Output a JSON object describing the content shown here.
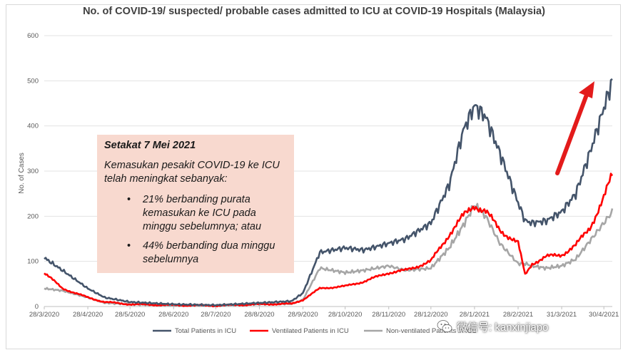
{
  "chart_data": {
    "type": "line",
    "title": "No. of COVID-19/ suspected/ probable cases admitted to ICU at COVID-19 Hospitals (Malaysia)",
    "xlabel": "",
    "ylabel": "No. of Cases",
    "ylim": [
      0,
      600
    ],
    "yticks": [
      0,
      100,
      200,
      300,
      400,
      500,
      600
    ],
    "xlim": [
      "2020-03-28",
      "2021-05-06"
    ],
    "xtick_labels": [
      "28/3/2020",
      "28/4/2020",
      "28/5/2020",
      "28/6/2020",
      "28/7/2020",
      "28/8/2020",
      "28/9/2020",
      "28/10/2020",
      "28/11/2020",
      "28/12/2020",
      "28/1/2021",
      "28/2/2021",
      "31/3/2021",
      "30/4/2021"
    ],
    "grid": "horizontal",
    "legend": "bottom",
    "x": [
      "2020-03-28",
      "2020-04-10",
      "2020-04-28",
      "2020-05-10",
      "2020-05-28",
      "2020-06-28",
      "2020-07-28",
      "2020-08-28",
      "2020-09-20",
      "2020-09-28",
      "2020-10-10",
      "2020-10-28",
      "2020-11-10",
      "2020-11-28",
      "2020-12-10",
      "2020-12-28",
      "2021-01-10",
      "2021-01-20",
      "2021-01-28",
      "2021-02-05",
      "2021-02-15",
      "2021-02-28",
      "2021-03-05",
      "2021-03-10",
      "2021-03-20",
      "2021-03-31",
      "2021-04-10",
      "2021-04-20",
      "2021-04-30",
      "2021-05-06"
    ],
    "series": [
      {
        "name": "Total Patients in ICU",
        "color": "#44546a",
        "values": [
          108,
          80,
          40,
          20,
          10,
          5,
          3,
          8,
          12,
          30,
          120,
          130,
          125,
          140,
          150,
          185,
          270,
          390,
          445,
          420,
          340,
          230,
          190,
          185,
          190,
          210,
          250,
          340,
          440,
          500
        ]
      },
      {
        "name": "Ventilated Patients in ICU",
        "color": "#ff0000",
        "values": [
          75,
          40,
          20,
          10,
          5,
          3,
          2,
          5,
          6,
          15,
          40,
          45,
          55,
          75,
          80,
          100,
          160,
          200,
          225,
          210,
          170,
          140,
          70,
          95,
          110,
          115,
          135,
          175,
          240,
          290
        ]
      },
      {
        "name": "Non-ventilated Patients in ICU",
        "color": "#a6a6a6",
        "values": [
          40,
          35,
          20,
          8,
          5,
          2,
          2,
          5,
          6,
          15,
          85,
          75,
          80,
          90,
          80,
          85,
          130,
          180,
          225,
          200,
          140,
          95,
          95,
          90,
          85,
          90,
          105,
          145,
          185,
          210
        ]
      }
    ]
  },
  "callout": {
    "heading": "Setakat 7 Mei 2021",
    "intro": "Kemasukan pesakit COVID-19 ke ICU telah meningkat sebanyak:",
    "bullets": [
      "21% berbanding purata kemasukan ke ICU pada minggu sebelumnya; atau",
      "44% berbanding dua minggu sebelumnya"
    ],
    "bullet_symbol": "•"
  },
  "watermark": {
    "text": "微信号: kanxinjiapo",
    "icon": "wechat-icon"
  },
  "annotation": {
    "arrow_color": "#e31b1b",
    "arrow_icon": "trend-up-arrow-icon"
  }
}
